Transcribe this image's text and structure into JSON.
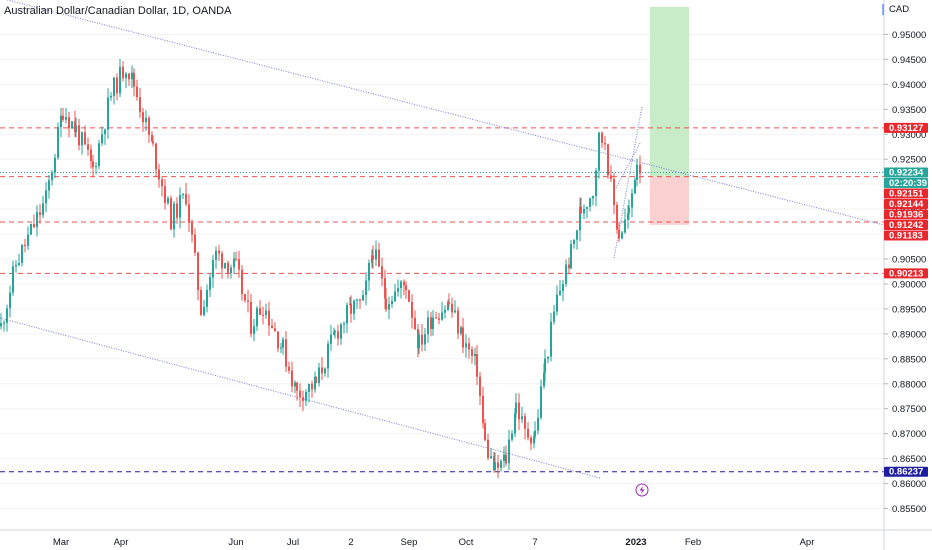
{
  "header": {
    "title": "Australian Dollar/Canadian Dollar, 1D, OANDA",
    "currency": "CAD"
  },
  "chart_data": {
    "type": "candlestick",
    "y_range": [
      0.8535,
      0.9555
    ],
    "y_ticks": [
      "0.95000",
      "0.94500",
      "0.94000",
      "0.93500",
      "0.93000",
      "0.92500",
      "0.92000",
      "0.91500",
      "0.91000",
      "0.90500",
      "0.90000",
      "0.89500",
      "0.89000",
      "0.88500",
      "0.88000",
      "0.87500",
      "0.87000",
      "0.86500",
      "0.86000",
      "0.85500"
    ],
    "x_ticks": [
      "Mar",
      "Apr",
      "Jun",
      "Jul",
      "2",
      "Sep",
      "Oct",
      "7",
      "2023",
      "Feb",
      "Apr"
    ],
    "price_lines": [
      {
        "label": "0.93127",
        "value": 0.93127,
        "color": "#ef5350",
        "style": "dashed"
      },
      {
        "label": "0.92151",
        "value": 0.92151,
        "color": "#ef5350",
        "style": "dashed"
      },
      {
        "label": "0.91242",
        "value": 0.91242,
        "color": "#ef5350",
        "style": "dashed"
      },
      {
        "label": "0.90213",
        "value": 0.90213,
        "color": "#ef5350",
        "style": "dashed"
      },
      {
        "label": "0.86237",
        "value": 0.86237,
        "color": "#1e1ea0",
        "style": "dashed"
      }
    ],
    "badges": [
      {
        "text": "0.92234",
        "value": 0.92234,
        "color": "#26a69a"
      },
      {
        "text": "02:20:39",
        "value": 0.92234,
        "color": "#26a69a"
      },
      {
        "text": "0.92151",
        "value": 0.92151,
        "color": "#e8262c"
      },
      {
        "text": "0.92144",
        "value": 0.92144,
        "color": "#e8262c"
      },
      {
        "text": "0.91936",
        "value": 0.91936,
        "color": "#e8262c"
      },
      {
        "text": "0.91242",
        "value": 0.91242,
        "color": "#e8262c"
      },
      {
        "text": "0.91183",
        "value": 0.91183,
        "color": "#e8262c"
      }
    ],
    "current_price": 0.92234,
    "position": {
      "entry": 0.92151,
      "target": 0.9555,
      "stop": 0.91183
    },
    "colors": {
      "up": "#26a69a",
      "down": "#ef5350",
      "trend": "#7b7bd8",
      "target": "#c8ecc8",
      "stop": "#fbd0d0"
    }
  }
}
